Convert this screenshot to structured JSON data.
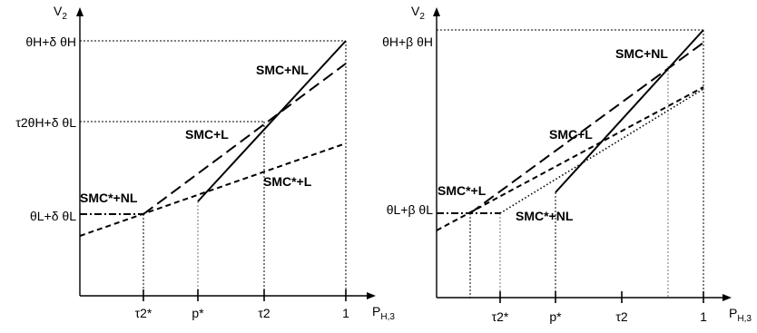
{
  "left_panel": {
    "y_axis": "V",
    "y_axis_sub": "2",
    "x_axis": "P",
    "x_axis_sub": "H,3",
    "y_labels": {
      "top": "θH+δ θH",
      "mid": "τ2θH+δ θL",
      "low": "θL+δ θL"
    },
    "x_ticks": [
      "τ2*",
      "p*",
      "τ2",
      "1"
    ],
    "curves": {
      "smc_nl": "SMC+NL",
      "smc_l": "SMC+L",
      "smc_star_l": "SMC*+L",
      "smc_star_nl": "SMC*+NL"
    }
  },
  "right_panel": {
    "y_axis": "V",
    "y_axis_sub": "2",
    "x_axis": "P",
    "x_axis_sub": "H,3",
    "y_labels": {
      "top": "θH+β θH",
      "low": "θL+β θL"
    },
    "x_ticks": [
      "τ2*",
      "p*",
      "τ2",
      "1"
    ],
    "curves": {
      "smc_nl": "SMC+NL",
      "smc_l": "SMC+L",
      "smc_star_l": "SMC*+L",
      "smc_star_nl": "SMC*+NL"
    }
  }
}
